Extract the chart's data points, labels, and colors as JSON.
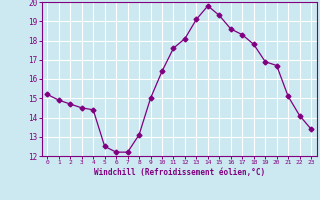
{
  "x": [
    0,
    1,
    2,
    3,
    4,
    5,
    6,
    7,
    8,
    9,
    10,
    11,
    12,
    13,
    14,
    15,
    16,
    17,
    18,
    19,
    20,
    21,
    22,
    23
  ],
  "y": [
    15.2,
    14.9,
    14.7,
    14.5,
    14.4,
    12.5,
    12.2,
    12.2,
    13.1,
    15.0,
    16.4,
    17.6,
    18.1,
    19.1,
    19.8,
    19.3,
    18.6,
    18.3,
    17.8,
    16.9,
    16.7,
    15.1,
    14.1,
    13.4
  ],
  "line_color": "#800080",
  "marker": "D",
  "marker_size": 2.5,
  "bg_color": "#cce8f0",
  "grid_color": "#ffffff",
  "xlabel": "Windchill (Refroidissement éolien,°C)",
  "xlabel_color": "#800080",
  "tick_color": "#800080",
  "ylim": [
    12,
    20
  ],
  "xlim": [
    -0.5,
    23.5
  ],
  "yticks": [
    12,
    13,
    14,
    15,
    16,
    17,
    18,
    19,
    20
  ],
  "xticks": [
    0,
    1,
    2,
    3,
    4,
    5,
    6,
    7,
    8,
    9,
    10,
    11,
    12,
    13,
    14,
    15,
    16,
    17,
    18,
    19,
    20,
    21,
    22,
    23
  ]
}
